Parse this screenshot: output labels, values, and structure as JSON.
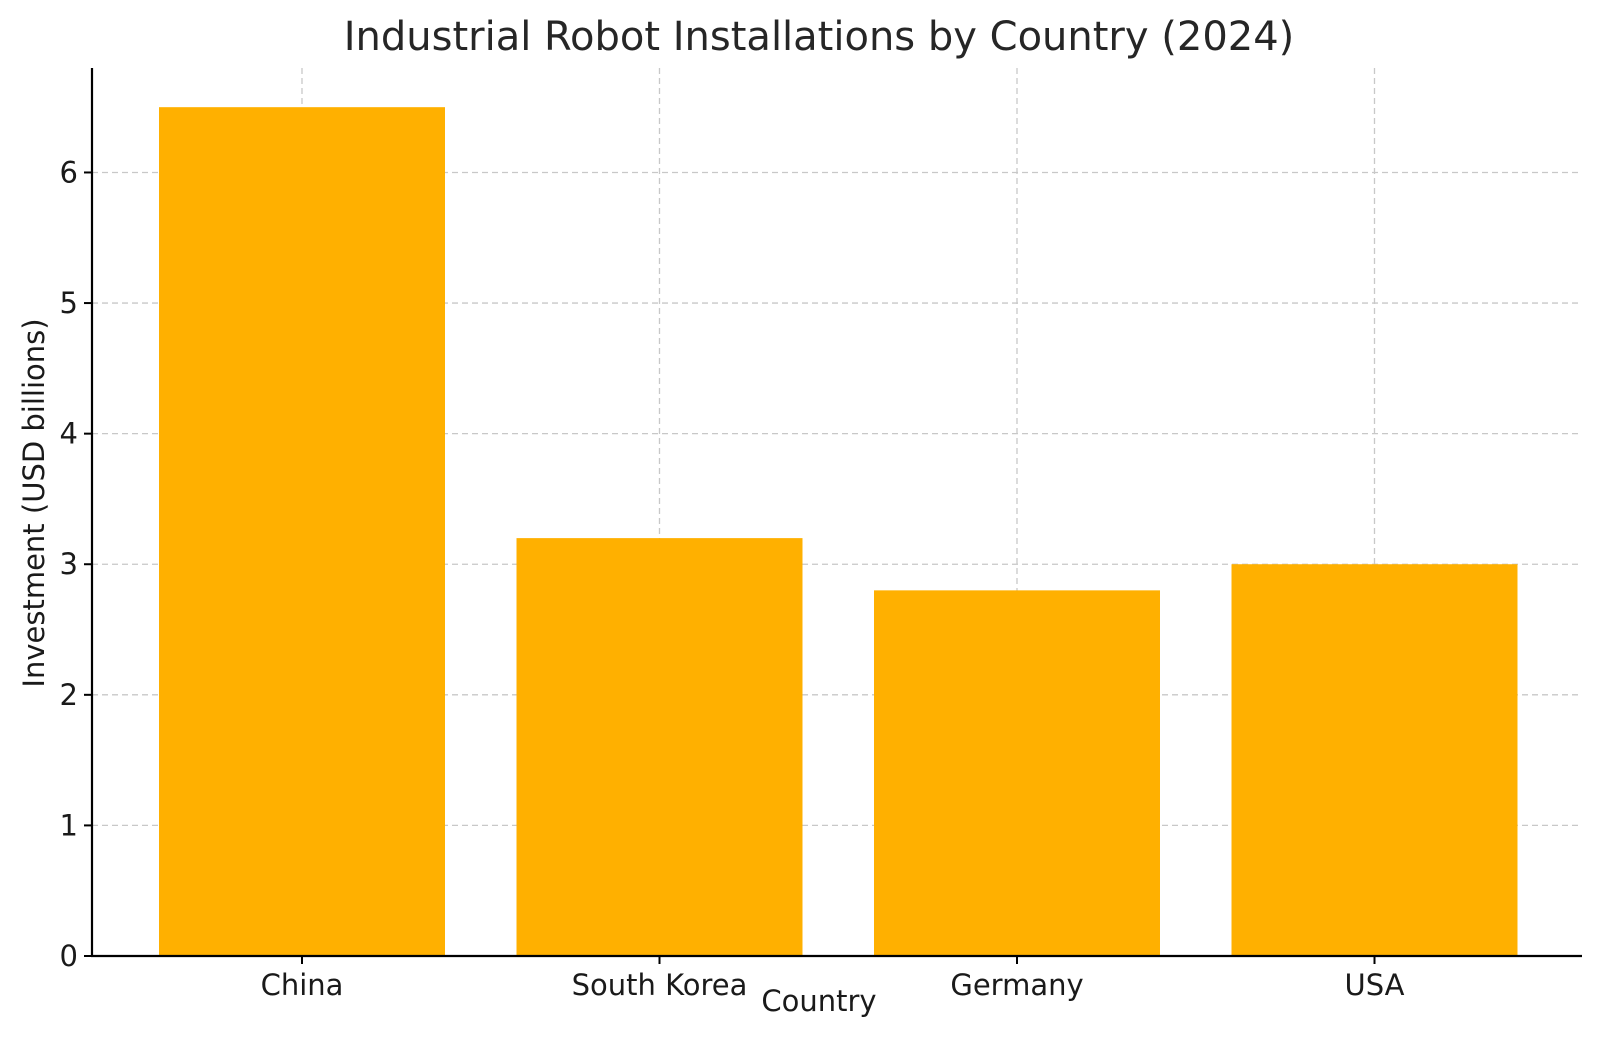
{
  "chart_data": {
    "type": "bar",
    "title": "Industrial Robot Installations by Country (2024)",
    "xlabel": "Country",
    "ylabel": "Investment (USD billions)",
    "categories": [
      "China",
      "South Korea",
      "Germany",
      "USA"
    ],
    "values": [
      6.5,
      3.2,
      2.8,
      3.0
    ],
    "ylim": [
      0,
      6.8
    ],
    "yticks": [
      0,
      1,
      2,
      3,
      4,
      5,
      6
    ],
    "grid": true,
    "bar_color": "#ffb000"
  }
}
